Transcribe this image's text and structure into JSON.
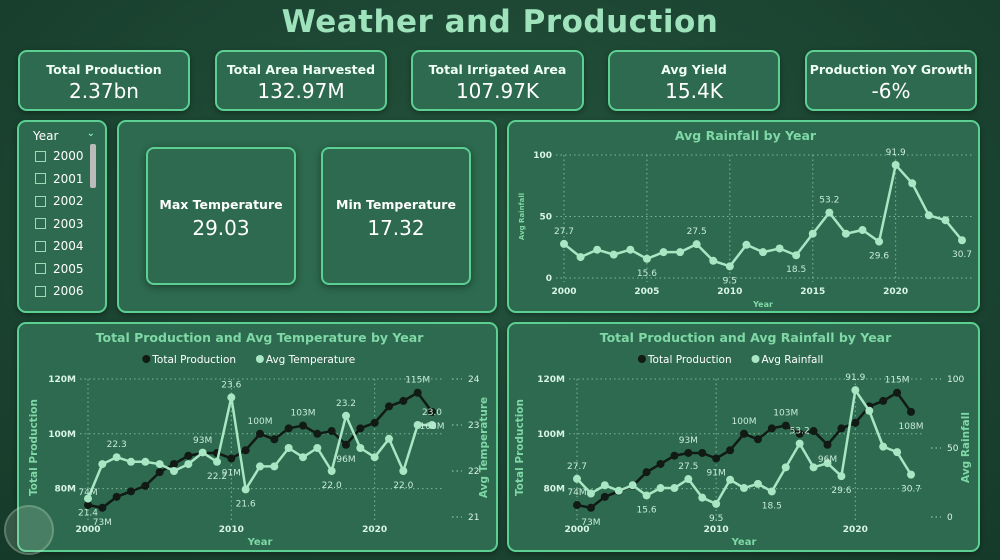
{
  "title": "Weather and Production",
  "kpis": [
    {
      "label": "Total Production",
      "value": "2.37bn"
    },
    {
      "label": "Total Area Harvested",
      "value": "132.97M"
    },
    {
      "label": "Total Irrigated Area",
      "value": "107.97K"
    },
    {
      "label": "Avg Yield",
      "value": "15.4K"
    },
    {
      "label": "Production YoY Growth",
      "value": "-6%"
    }
  ],
  "slicer": {
    "title": "Year",
    "items": [
      "2000",
      "2001",
      "2002",
      "2003",
      "2004",
      "2005",
      "2006"
    ]
  },
  "temperature": {
    "max_label": "Max Temperature",
    "max_value": "29.03",
    "min_label": "Min Temperature",
    "min_value": "17.32"
  },
  "colors": {
    "background": "#1e4a35",
    "card": "#2d6a4f",
    "border": "#5ccf93",
    "title": "#9fe3bd",
    "production": "#111a15",
    "light_series": "#a8e6c4"
  },
  "chart_data": [
    {
      "type": "line",
      "title": "Avg Rainfall by Year",
      "xlabel": "Year",
      "ylabel": "Avg Rainfall",
      "x": [
        2000,
        2001,
        2002,
        2003,
        2004,
        2005,
        2006,
        2007,
        2008,
        2009,
        2010,
        2011,
        2012,
        2013,
        2014,
        2015,
        2016,
        2017,
        2018,
        2019,
        2020,
        2021,
        2022,
        2023,
        2024
      ],
      "values": [
        27.7,
        17,
        23,
        19,
        23,
        15.6,
        21,
        21,
        27.5,
        14,
        9.5,
        27,
        21,
        24,
        18.5,
        36,
        53.2,
        36,
        39,
        29.6,
        91.9,
        77,
        51,
        47,
        30.7
      ],
      "xticks": [
        "2000",
        "2005",
        "2010",
        "2015",
        "2020"
      ],
      "yticks": [
        "0",
        "50",
        "100"
      ],
      "ylim": [
        0,
        100
      ],
      "data_labels": {
        "2000": "27.7",
        "2005": "15.6",
        "2008": "27.5",
        "2010": "9.5",
        "2014": "18.5",
        "2016": "53.2",
        "2019": "29.6",
        "2020": "91.9",
        "2024": "30.7"
      }
    },
    {
      "type": "line",
      "title": "Total Production and Avg Temperature by Year",
      "xlabel": "Year",
      "ylabel": "Total Production",
      "y2label": "Avg Temperature",
      "x": [
        2000,
        2001,
        2002,
        2003,
        2004,
        2005,
        2006,
        2007,
        2008,
        2009,
        2010,
        2011,
        2012,
        2013,
        2014,
        2015,
        2016,
        2017,
        2018,
        2019,
        2020,
        2021,
        2022,
        2023,
        2024
      ],
      "series": [
        {
          "name": "Total Production",
          "axis": "left",
          "values": [
            74,
            73,
            77,
            79,
            81,
            86,
            89,
            92,
            93,
            93,
            91,
            94,
            100,
            98,
            102,
            103,
            100,
            101,
            96,
            102,
            104,
            110,
            112,
            115,
            108
          ]
        },
        {
          "name": "Avg Temperature",
          "axis": "right",
          "values": [
            21.4,
            22.15,
            22.3,
            22.2,
            22.2,
            22.15,
            22.0,
            22.15,
            22.4,
            22.2,
            23.6,
            21.6,
            22.1,
            22.1,
            22.5,
            22.3,
            22.5,
            22.0,
            23.2,
            22.5,
            22.3,
            22.7,
            22.0,
            23.0,
            23.0
          ]
        }
      ],
      "xticks": [
        "2000",
        "2010",
        "2020"
      ],
      "yticks": [
        "80M",
        "100M",
        "120M"
      ],
      "y2ticks": [
        "21",
        "22",
        "23",
        "24"
      ],
      "ylim": [
        70,
        120
      ],
      "y2lim": [
        21,
        24
      ],
      "legend": "top-center",
      "data_labels": [
        {
          "series": 0,
          "year": 2000,
          "text": "74M"
        },
        {
          "series": 0,
          "year": 2001,
          "text": "73M"
        },
        {
          "series": 0,
          "year": 2008,
          "text": "93M"
        },
        {
          "series": 0,
          "year": 2010,
          "text": "91M"
        },
        {
          "series": 0,
          "year": 2012,
          "text": "100M"
        },
        {
          "series": 0,
          "year": 2015,
          "text": "103M"
        },
        {
          "series": 0,
          "year": 2018,
          "text": "96M"
        },
        {
          "series": 0,
          "year": 2023,
          "text": "115M"
        },
        {
          "series": 0,
          "year": 2024,
          "text": "108M"
        },
        {
          "series": 1,
          "year": 2000,
          "text": "21.4"
        },
        {
          "series": 1,
          "year": 2002,
          "text": "22.3"
        },
        {
          "series": 1,
          "year": 2009,
          "text": "22.2"
        },
        {
          "series": 1,
          "year": 2010,
          "text": "23.6"
        },
        {
          "series": 1,
          "year": 2011,
          "text": "21.6"
        },
        {
          "series": 1,
          "year": 2017,
          "text": "22.0"
        },
        {
          "series": 1,
          "year": 2018,
          "text": "23.2"
        },
        {
          "series": 1,
          "year": 2022,
          "text": "22.0"
        },
        {
          "series": 1,
          "year": 2024,
          "text": "23.0"
        }
      ]
    },
    {
      "type": "line",
      "title": "Total Production and Avg Rainfall by Year",
      "xlabel": "Year",
      "ylabel": "Total Production",
      "y2label": "Avg Rainfall",
      "x": [
        2000,
        2001,
        2002,
        2003,
        2004,
        2005,
        2006,
        2007,
        2008,
        2009,
        2010,
        2011,
        2012,
        2013,
        2014,
        2015,
        2016,
        2017,
        2018,
        2019,
        2020,
        2021,
        2022,
        2023,
        2024
      ],
      "series": [
        {
          "name": "Total Production",
          "axis": "left",
          "values": [
            74,
            73,
            77,
            79,
            81,
            86,
            89,
            92,
            93,
            93,
            91,
            94,
            100,
            98,
            102,
            103,
            100,
            101,
            96,
            102,
            104,
            110,
            112,
            115,
            108
          ]
        },
        {
          "name": "Avg Rainfall",
          "axis": "right",
          "values": [
            27.7,
            17,
            23,
            19,
            23,
            15.6,
            21,
            21,
            27.5,
            14,
            9.5,
            27,
            21,
            24,
            18.5,
            36,
            53.2,
            36,
            39,
            29.6,
            91.9,
            77,
            51,
            47,
            30.7
          ]
        }
      ],
      "xticks": [
        "2000",
        "2010",
        "2020"
      ],
      "yticks": [
        "80M",
        "100M",
        "120M"
      ],
      "y2ticks": [
        "0",
        "50",
        "100"
      ],
      "ylim": [
        70,
        120
      ],
      "y2lim": [
        0,
        100
      ],
      "legend": "top-center",
      "data_labels": [
        {
          "series": 0,
          "year": 2000,
          "text": "74M"
        },
        {
          "series": 0,
          "year": 2001,
          "text": "73M"
        },
        {
          "series": 0,
          "year": 2008,
          "text": "93M"
        },
        {
          "series": 0,
          "year": 2010,
          "text": "91M"
        },
        {
          "series": 0,
          "year": 2012,
          "text": "100M"
        },
        {
          "series": 0,
          "year": 2015,
          "text": "103M"
        },
        {
          "series": 0,
          "year": 2018,
          "text": "96M"
        },
        {
          "series": 0,
          "year": 2023,
          "text": "115M"
        },
        {
          "series": 0,
          "year": 2024,
          "text": "108M"
        },
        {
          "series": 1,
          "year": 2000,
          "text": "27.7"
        },
        {
          "series": 1,
          "year": 2005,
          "text": "15.6"
        },
        {
          "series": 1,
          "year": 2008,
          "text": "27.5"
        },
        {
          "series": 1,
          "year": 2010,
          "text": "9.5"
        },
        {
          "series": 1,
          "year": 2014,
          "text": "18.5"
        },
        {
          "series": 1,
          "year": 2016,
          "text": "53.2"
        },
        {
          "series": 1,
          "year": 2019,
          "text": "29.6"
        },
        {
          "series": 1,
          "year": 2020,
          "text": "91.9"
        },
        {
          "series": 1,
          "year": 2024,
          "text": "30.7"
        }
      ]
    }
  ]
}
